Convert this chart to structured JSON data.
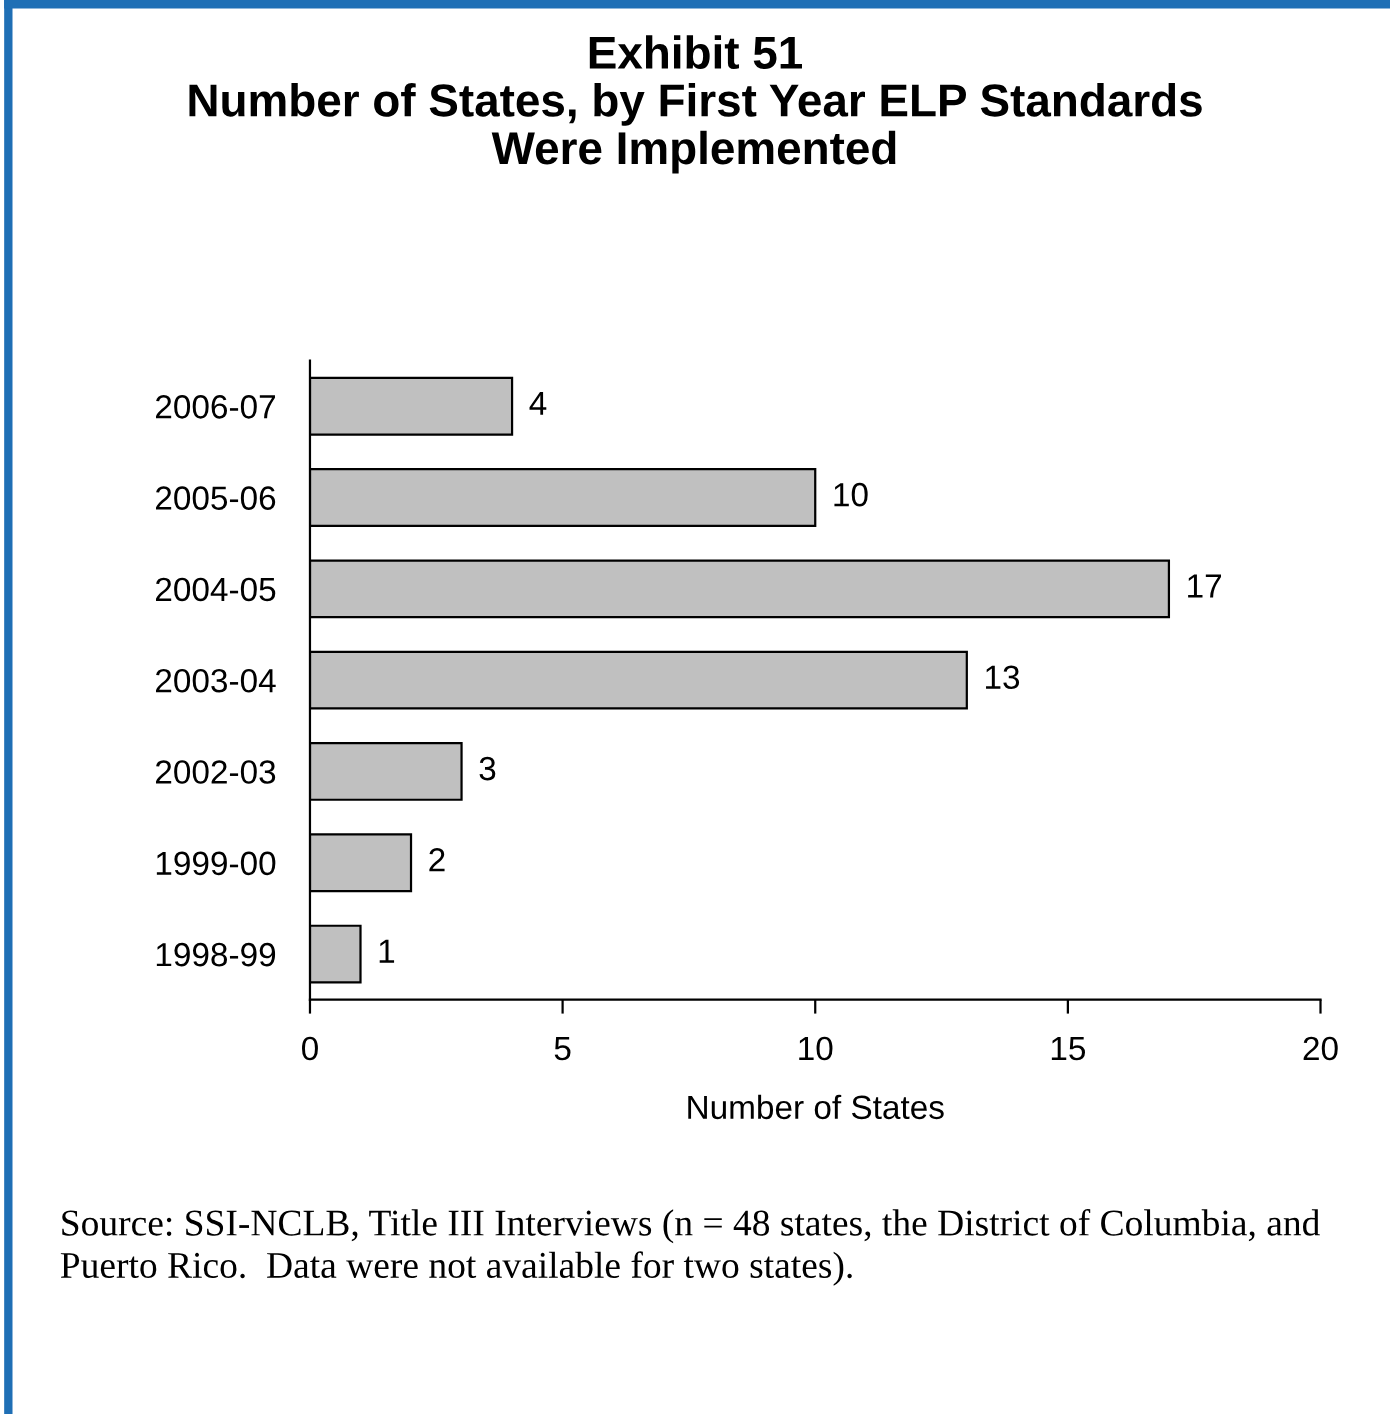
{
  "chart_data": {
    "type": "bar",
    "orientation": "horizontal",
    "title": "Exhibit 51\nNumber of States, by First Year ELP Standards\nWere Implemented",
    "categories": [
      "2006-07",
      "2005-06",
      "2004-05",
      "2003-04",
      "2002-03",
      "1999-00",
      "1998-99"
    ],
    "values": [
      4,
      10,
      17,
      13,
      3,
      2,
      1
    ],
    "color": "#c0c0c0",
    "xlim": [
      0,
      20
    ],
    "xticks": [
      0,
      5,
      10,
      15,
      20
    ],
    "xlabel": "Number of States",
    "data_labels": true,
    "grid": false,
    "legend": false,
    "annotations": [
      "Source: SSI-NCLB, Title III Interviews (n = 48 states, the District of Columbia, and Puerto Rico.  Data were not available for two states)."
    ]
  }
}
